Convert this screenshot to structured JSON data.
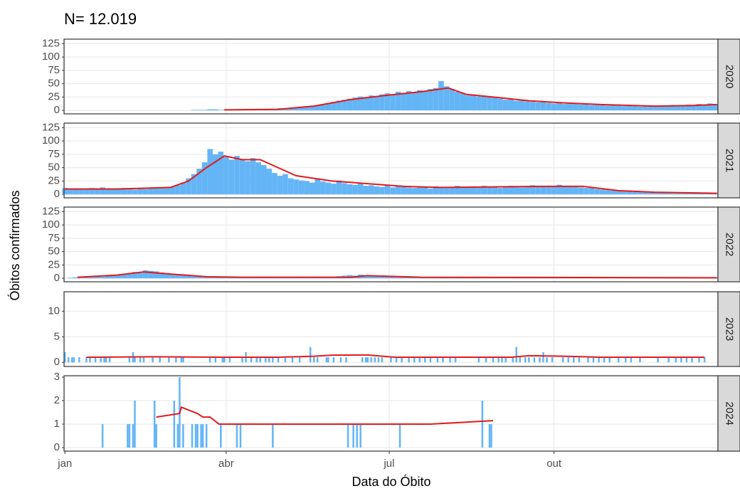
{
  "chart_data": {
    "type": "bar",
    "title": "N= 12.019",
    "x_label": "Data do Óbito",
    "y_label": "Óbitos confirmados",
    "xlim": [
      0.5,
      365.5
    ],
    "xticks": [
      {
        "value": 1,
        "label": "jan"
      },
      {
        "value": 91,
        "label": "abr"
      },
      {
        "value": 182,
        "label": "jul"
      },
      {
        "value": 274,
        "label": "out"
      }
    ],
    "bar_color": "#64b5f6",
    "line_color": "#e31a1c",
    "grid": true,
    "facets": [
      {
        "label": "2020",
        "ylim": [
          -6.5,
          133.5
        ],
        "yticks": [
          0,
          25,
          50,
          75,
          100,
          125
        ],
        "bars": {
          "x": [
            73,
            76,
            79,
            82,
            85,
            88,
            91,
            94,
            97,
            100,
            103,
            106,
            109,
            112,
            115,
            118,
            121,
            124,
            127,
            130,
            133,
            136,
            139,
            142,
            145,
            148,
            151,
            154,
            157,
            160,
            163,
            166,
            169,
            172,
            175,
            178,
            181,
            184,
            187,
            190,
            193,
            196,
            199,
            202,
            205,
            208,
            211,
            214,
            217,
            220,
            223,
            226,
            229,
            232,
            235,
            238,
            241,
            244,
            247,
            250,
            253,
            256,
            259,
            262,
            265,
            268,
            271,
            274,
            277,
            280,
            283,
            286,
            289,
            292,
            295,
            298,
            301,
            304,
            307,
            310,
            313,
            316,
            319,
            322,
            325,
            328,
            331,
            334,
            337,
            340,
            343,
            346,
            349,
            352,
            355,
            358,
            361,
            364
          ],
          "values": [
            1,
            1,
            1,
            2,
            2,
            1,
            2,
            2,
            1,
            2,
            2,
            2,
            3,
            2,
            3,
            3,
            4,
            4,
            5,
            6,
            7,
            8,
            9,
            10,
            12,
            14,
            16,
            18,
            20,
            22,
            24,
            26,
            24,
            28,
            27,
            30,
            32,
            30,
            35,
            33,
            36,
            34,
            38,
            36,
            40,
            42,
            55,
            45,
            40,
            35,
            32,
            28,
            30,
            26,
            27,
            25,
            24,
            22,
            20,
            21,
            18,
            19,
            17,
            16,
            15,
            16,
            14,
            13,
            14,
            12,
            13,
            12,
            11,
            12,
            10,
            11,
            10,
            9,
            10,
            9,
            8,
            9,
            8,
            7,
            8,
            8,
            9,
            8,
            9,
            10,
            9,
            10,
            11,
            10,
            12,
            11,
            13,
            12
          ]
        },
        "line": {
          "x": [
            90,
            120,
            140,
            160,
            180,
            200,
            215,
            225,
            240,
            260,
            280,
            300,
            330,
            350,
            365
          ],
          "values": [
            1,
            2,
            8,
            20,
            28,
            35,
            42,
            30,
            25,
            18,
            14,
            11,
            8,
            9,
            11
          ]
        }
      },
      {
        "label": "2021",
        "ylim": [
          -6.5,
          133.5
        ],
        "yticks": [
          0,
          25,
          50,
          75,
          100,
          125
        ],
        "bars": {
          "x": [
            1,
            4,
            7,
            10,
            13,
            16,
            19,
            22,
            25,
            28,
            31,
            34,
            37,
            40,
            43,
            46,
            49,
            52,
            55,
            58,
            61,
            64,
            67,
            70,
            73,
            76,
            79,
            82,
            85,
            88,
            91,
            94,
            97,
            100,
            103,
            106,
            109,
            112,
            115,
            118,
            121,
            124,
            127,
            130,
            133,
            136,
            139,
            142,
            145,
            148,
            151,
            154,
            157,
            160,
            163,
            166,
            169,
            172,
            175,
            178,
            181,
            184,
            187,
            190,
            193,
            196,
            199,
            202,
            205,
            208,
            211,
            214,
            217,
            220,
            223,
            226,
            229,
            232,
            235,
            238,
            241,
            244,
            247,
            250,
            253,
            256,
            259,
            262,
            265,
            268,
            271,
            274,
            277,
            280,
            283,
            286,
            289,
            292,
            295,
            298,
            301,
            304,
            307,
            310,
            313,
            316,
            319,
            322,
            325,
            328,
            331,
            334,
            337,
            340,
            343,
            346,
            349,
            352,
            355,
            358,
            361,
            364
          ],
          "values": [
            12,
            10,
            9,
            11,
            10,
            12,
            11,
            13,
            10,
            9,
            11,
            12,
            10,
            9,
            11,
            10,
            12,
            11,
            13,
            12,
            14,
            17,
            22,
            30,
            38,
            48,
            60,
            85,
            75,
            80,
            70,
            65,
            72,
            66,
            62,
            68,
            60,
            55,
            48,
            40,
            35,
            38,
            30,
            28,
            26,
            25,
            22,
            30,
            24,
            22,
            20,
            26,
            21,
            19,
            18,
            20,
            16,
            17,
            15,
            14,
            16,
            13,
            15,
            14,
            13,
            12,
            14,
            13,
            11,
            15,
            14,
            12,
            13,
            16,
            14,
            13,
            15,
            14,
            16,
            13,
            15,
            12,
            14,
            16,
            15,
            13,
            14,
            17,
            15,
            16,
            14,
            15,
            18,
            16,
            15,
            14,
            13,
            12,
            12,
            10,
            9,
            8,
            7,
            8,
            6,
            5,
            6,
            4,
            5,
            4,
            3,
            4,
            3,
            2,
            3,
            2,
            3,
            2,
            2,
            3,
            2,
            2
          ]
        },
        "line": {
          "x": [
            1,
            30,
            60,
            70,
            80,
            90,
            100,
            110,
            120,
            130,
            150,
            170,
            190,
            210,
            240,
            270,
            290,
            310,
            330,
            365
          ],
          "values": [
            10,
            10,
            13,
            25,
            50,
            72,
            65,
            65,
            50,
            35,
            25,
            20,
            15,
            13,
            14,
            15,
            15,
            7,
            4,
            2
          ]
        }
      },
      {
        "label": "2022",
        "ylim": [
          -6.5,
          133.5
        ],
        "yticks": [
          0,
          25,
          50,
          75,
          100,
          125
        ],
        "bars": {
          "x": [
            1,
            4,
            7,
            10,
            13,
            16,
            19,
            22,
            25,
            28,
            31,
            34,
            37,
            40,
            43,
            46,
            49,
            52,
            55,
            58,
            61,
            64,
            67,
            70,
            73,
            76,
            79,
            82,
            85,
            88,
            91,
            94,
            97,
            100,
            103,
            106,
            109,
            112,
            115,
            118,
            121,
            124,
            127,
            130,
            133,
            136,
            139,
            142,
            145,
            148,
            151,
            154,
            157,
            160,
            163,
            166,
            169,
            172,
            175,
            178,
            181,
            184,
            187,
            190,
            193,
            196,
            199,
            202,
            205,
            208,
            211,
            214,
            217,
            220,
            223,
            226,
            229,
            232,
            235,
            238,
            241,
            244,
            247,
            250,
            253,
            256,
            259,
            262,
            265,
            268,
            271,
            274,
            277,
            280,
            283,
            286,
            289,
            292,
            295,
            298,
            301,
            304,
            307,
            310,
            313,
            316,
            319,
            322,
            325,
            328,
            331,
            334,
            337,
            340,
            343,
            346,
            349,
            352,
            355,
            358,
            361,
            364
          ],
          "values": [
            0,
            1,
            2,
            1,
            2,
            3,
            4,
            3,
            5,
            6,
            7,
            8,
            9,
            12,
            10,
            15,
            14,
            13,
            11,
            10,
            8,
            7,
            6,
            5,
            4,
            4,
            3,
            3,
            3,
            2,
            2,
            2,
            2,
            2,
            2,
            3,
            2,
            2,
            2,
            2,
            2,
            2,
            2,
            2,
            2,
            2,
            2,
            2,
            2,
            3,
            3,
            4,
            5,
            6,
            5,
            7,
            6,
            5,
            4,
            3,
            3,
            3,
            2,
            2,
            2,
            2,
            1,
            2,
            2,
            1,
            2,
            1,
            2,
            2,
            1,
            2,
            1,
            2,
            2,
            1,
            2,
            1,
            1,
            2,
            1,
            2,
            1,
            1,
            2,
            1,
            1,
            2,
            1,
            1,
            2,
            1,
            1,
            1,
            1,
            1,
            1,
            1,
            1,
            1,
            1,
            1,
            1,
            1,
            1,
            1,
            1,
            1,
            1,
            1,
            1,
            1,
            1,
            1,
            1,
            1,
            1,
            1
          ]
        },
        "line": {
          "x": [
            8,
            30,
            45,
            60,
            80,
            100,
            160,
            170,
            180,
            200,
            365
          ],
          "values": [
            2,
            6,
            12,
            8,
            3,
            2,
            2,
            5,
            4,
            2,
            1
          ]
        }
      },
      {
        "label": "2023",
        "ylim": [
          -0.8,
          13.8
        ],
        "yticks": [
          0,
          5,
          10
        ],
        "bars": {
          "x": [
            1,
            3,
            5,
            6,
            9,
            13,
            15,
            18,
            21,
            23,
            24,
            26,
            37,
            39,
            40,
            43,
            45,
            50,
            54,
            59,
            63,
            66,
            67,
            82,
            85,
            89,
            90,
            93,
            100,
            102,
            105,
            108,
            110,
            113,
            115,
            117,
            120,
            124,
            128,
            132,
            138,
            140,
            142,
            147,
            148,
            151,
            155,
            158,
            167,
            169,
            170,
            172,
            174,
            176,
            178,
            183,
            186,
            189,
            193,
            196,
            199,
            202,
            205,
            209,
            212,
            216,
            219,
            232,
            236,
            240,
            243,
            245,
            247,
            251,
            253,
            255,
            258,
            260,
            263,
            266,
            268,
            270,
            273,
            279,
            282,
            285,
            288,
            293,
            296,
            299,
            302,
            305,
            310,
            314,
            317,
            322,
            332,
            338,
            342,
            345,
            348,
            351,
            355,
            358
          ],
          "values": [
            2,
            1,
            1,
            1,
            1,
            1,
            1,
            1,
            1,
            1,
            1,
            1,
            1,
            2,
            1,
            1,
            1,
            1,
            1,
            1,
            1,
            1,
            1,
            1,
            1,
            1,
            1,
            1,
            1,
            2,
            1,
            1,
            1,
            1,
            1,
            1,
            1,
            1,
            1,
            1,
            3,
            1,
            1,
            1,
            1,
            1,
            1,
            1,
            1,
            1,
            1,
            1,
            1,
            1,
            1,
            1,
            1,
            1,
            1,
            1,
            1,
            1,
            1,
            1,
            1,
            1,
            1,
            1,
            1,
            1,
            1,
            1,
            1,
            1,
            3,
            1,
            1,
            1,
            1,
            1,
            2,
            1,
            1,
            1,
            1,
            1,
            1,
            1,
            1,
            1,
            1,
            1,
            1,
            1,
            1,
            1,
            1,
            1,
            1,
            1,
            1,
            1,
            1,
            1
          ]
        },
        "line": {
          "x": [
            13,
            50,
            90,
            120,
            140,
            150,
            170,
            185,
            250,
            260,
            280,
            300,
            358
          ],
          "values": [
            1,
            1.1,
            1,
            1,
            1.2,
            1.4,
            1.45,
            1,
            1,
            1.3,
            1.2,
            1,
            1
          ]
        }
      },
      {
        "label": "2024",
        "ylim": [
          -0.15,
          3.06
        ],
        "yticks": [
          0,
          1,
          2,
          3
        ],
        "bars": {
          "x": [
            22,
            36,
            37,
            39,
            40,
            51,
            52,
            62,
            64,
            65,
            67,
            72,
            74,
            75,
            77,
            78,
            80,
            88,
            97,
            99,
            117,
            159,
            162,
            164,
            166,
            188,
            234,
            238,
            239
          ],
          "values": [
            1,
            1,
            1,
            1,
            2,
            2,
            1,
            2,
            1,
            3,
            1,
            1,
            1,
            1,
            1,
            1,
            1,
            1,
            1,
            1,
            1,
            1,
            1,
            1,
            1,
            1,
            2,
            1,
            1
          ]
        },
        "line": {
          "x": [
            52,
            65,
            66,
            70,
            75,
            78,
            82,
            87,
            205,
            240
          ],
          "values": [
            1.3,
            1.45,
            1.72,
            1.6,
            1.45,
            1.3,
            1.3,
            1,
            1,
            1.15
          ]
        }
      }
    ]
  }
}
